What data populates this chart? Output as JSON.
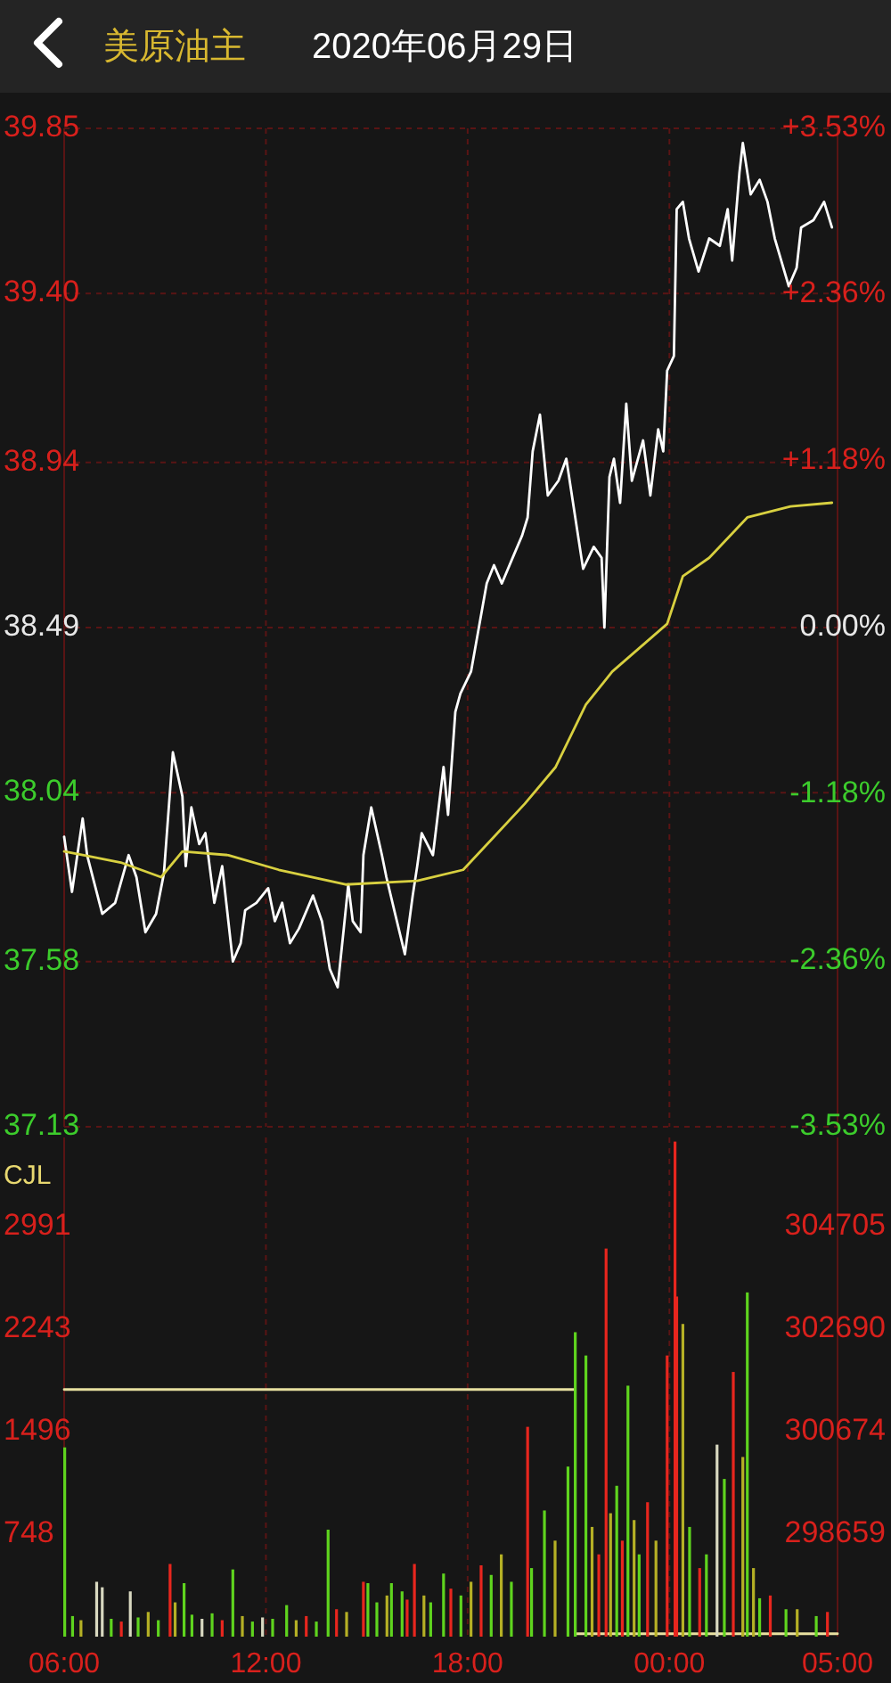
{
  "chart_data": [
    {
      "type": "line",
      "title": "美原油主",
      "subtitle": "2020年06月29日",
      "xlim": [
        "2020-06-29T06:00",
        "2020-06-30T05:00"
      ],
      "xticks": [
        {
          "value": "2020-06-29T12:00",
          "label": null
        },
        {
          "value": "2020-06-29T18:00",
          "label": null
        },
        {
          "value": "2020-06-30T00:00",
          "label": null
        }
      ],
      "ylim": [
        37.13,
        39.85
      ],
      "yticks": [
        37.13,
        37.58,
        38.04,
        38.49,
        38.94,
        {
          "value": 39.4,
          "label": "39.40"
        },
        39.85
      ],
      "y2lim": [
        -3.53,
        3.53
      ],
      "y2ticks": [
        {
          "value": -3.53,
          "label": "-3.53%"
        },
        {
          "value": -2.36,
          "label": "-2.36%"
        },
        {
          "value": -1.18,
          "label": "-1.18%"
        },
        {
          "value": 0,
          "label": "0.00%"
        },
        {
          "value": 1.18,
          "label": "+1.18%"
        },
        {
          "value": 2.36,
          "label": "+2.36%"
        },
        {
          "value": 3.53,
          "label": "+3.53%"
        }
      ],
      "grid": true,
      "tick_labels": "y",
      "series": [
        {
          "color": "#ffffff",
          "x": [
            "2020-06-29T06:00",
            "2020-06-29T06:14",
            "2020-06-29T06:33",
            "2020-06-29T06:41",
            "2020-06-29T07:08",
            "2020-06-29T07:31",
            "2020-06-29T07:55",
            "2020-06-29T08:09",
            "2020-06-29T08:25",
            "2020-06-29T08:44",
            "2020-06-29T08:58",
            "2020-06-29T09:14",
            "2020-06-29T09:31",
            "2020-06-29T09:37",
            "2020-06-29T09:47",
            "2020-06-29T10:01",
            "2020-06-29T10:12",
            "2020-06-29T10:28",
            "2020-06-29T10:42",
            "2020-06-29T11:01",
            "2020-06-29T11:15",
            "2020-06-29T11:23",
            "2020-06-29T11:43",
            "2020-06-29T12:04",
            "2020-06-29T12:16",
            "2020-06-29T12:29",
            "2020-06-29T12:43",
            "2020-06-29T12:59",
            "2020-06-29T13:24",
            "2020-06-29T13:40",
            "2020-06-29T13:54",
            "2020-06-29T14:08",
            "2020-06-29T14:19",
            "2020-06-29T14:27",
            "2020-06-29T14:35",
            "2020-06-29T14:49",
            "2020-06-29T14:54",
            "2020-06-29T15:08",
            "2020-06-29T15:27",
            "2020-06-29T15:35",
            "2020-06-29T15:49",
            "2020-06-29T16:08",
            "2020-06-29T16:22",
            "2020-06-29T16:30",
            "2020-06-29T16:38",
            "2020-06-29T16:58",
            "2020-06-29T17:17",
            "2020-06-29T17:25",
            "2020-06-29T17:38",
            "2020-06-29T17:47",
            "2020-06-29T18:06",
            "2020-06-29T18:20",
            "2020-06-29T18:34",
            "2020-06-29T18:47",
            "2020-06-29T19:01",
            "2020-06-29T19:23",
            "2020-06-29T19:37",
            "2020-06-29T19:47",
            "2020-06-29T19:56",
            "2020-06-29T20:09",
            "2020-06-29T20:23",
            "2020-06-29T20:42",
            "2020-06-29T20:56",
            "2020-06-29T21:10",
            "2020-06-29T21:26",
            "2020-06-29T21:45",
            "2020-06-29T21:59",
            "2020-06-29T22:04",
            "2020-06-29T22:13",
            "2020-06-29T22:21",
            "2020-06-29T22:32",
            "2020-06-29T22:43",
            "2020-06-29T22:53",
            "2020-06-29T23:13",
            "2020-06-29T23:26",
            "2020-06-29T23:40",
            "2020-06-29T23:49",
            "2020-06-29T23:56",
            "2020-06-30T00:08",
            "2020-06-30T00:13",
            "2020-06-30T00:24",
            "2020-06-30T00:35",
            "2020-06-30T00:52",
            "2020-06-30T01:11",
            "2020-06-30T01:30",
            "2020-06-30T01:44",
            "2020-06-30T01:52",
            "2020-06-30T02:05",
            "2020-06-30T02:11",
            "2020-06-30T02:25",
            "2020-06-30T02:41",
            "2020-06-30T02:55",
            "2020-06-30T03:08",
            "2020-06-30T03:33",
            "2020-06-30T03:47",
            "2020-06-30T03:55",
            "2020-06-30T04:17",
            "2020-06-30T04:36",
            "2020-06-30T04:50"
          ],
          "values": [
            37.92,
            37.77,
            37.97,
            37.87,
            37.71,
            37.74,
            37.87,
            37.81,
            37.66,
            37.71,
            37.82,
            38.15,
            38.03,
            37.84,
            38.0,
            37.9,
            37.93,
            37.74,
            37.84,
            37.58,
            37.63,
            37.72,
            37.74,
            37.78,
            37.69,
            37.74,
            37.63,
            37.67,
            37.76,
            37.69,
            37.56,
            37.51,
            37.67,
            37.79,
            37.69,
            37.66,
            37.87,
            38.0,
            37.87,
            37.81,
            37.72,
            37.6,
            37.76,
            37.84,
            37.93,
            37.87,
            38.11,
            37.98,
            38.26,
            38.31,
            38.37,
            38.49,
            38.61,
            38.66,
            38.61,
            38.69,
            38.74,
            38.79,
            38.97,
            39.07,
            38.85,
            38.89,
            38.95,
            38.81,
            38.65,
            38.71,
            38.68,
            38.49,
            38.9,
            38.95,
            38.83,
            39.1,
            38.89,
            39.0,
            38.85,
            39.03,
            38.97,
            39.19,
            39.23,
            39.63,
            39.65,
            39.55,
            39.46,
            39.55,
            39.53,
            39.63,
            39.49,
            39.73,
            39.81,
            39.67,
            39.71,
            39.65,
            39.55,
            39.42,
            39.47,
            39.58,
            39.6,
            39.65,
            39.58
          ]
        },
        {
          "color": "#d8d040",
          "x": [
            "2020-06-29T06:00",
            "2020-06-29T06:35",
            "2020-06-29T07:41",
            "2020-06-29T08:53",
            "2020-06-29T09:31",
            "2020-06-29T10:53",
            "2020-06-29T12:23",
            "2020-06-29T14:22",
            "2020-06-29T16:30",
            "2020-06-29T17:52",
            "2020-06-29T18:47",
            "2020-06-29T19:42",
            "2020-06-29T20:37",
            "2020-06-29T21:31",
            "2020-06-29T22:18",
            "2020-06-29T23:56",
            "2020-06-30T00:24",
            "2020-06-30T01:11",
            "2020-06-30T02:19",
            "2020-06-30T03:36",
            "2020-06-30T04:50"
          ],
          "values": [
            37.88,
            37.87,
            37.85,
            37.81,
            37.88,
            37.87,
            37.83,
            37.79,
            37.8,
            37.83,
            37.92,
            38.01,
            38.11,
            38.28,
            38.37,
            38.5,
            38.63,
            38.68,
            38.79,
            38.82,
            38.83
          ]
        }
      ]
    },
    {
      "type": "bar",
      "title": "CJL",
      "xlim": [
        "2020-06-29T06:00",
        "2020-06-30T05:00"
      ],
      "xticks": [
        {
          "value": "2020-06-29T06:00",
          "label": "06:00"
        },
        {
          "value": "2020-06-29T12:00",
          "label": "12:00"
        },
        {
          "value": "2020-06-29T18:00",
          "label": "18:00"
        },
        {
          "value": "2020-06-30T00:00",
          "label": "00:00"
        },
        {
          "value": "2020-06-30T05:00",
          "label": "05:00"
        }
      ],
      "ylim": [
        0,
        3640
      ],
      "yticks": [
        748,
        1496,
        2243,
        2991
      ],
      "y2lim": [
        296643,
        306454
      ],
      "y2ticks": [
        298659,
        300674,
        302690,
        304705
      ],
      "grid": "x",
      "series": [
        {
          "type": "bar",
          "x": [
            "2020-06-29T06:01",
            "2020-06-29T06:15",
            "2020-06-29T06:30",
            "2020-06-29T06:58",
            "2020-06-29T07:08",
            "2020-06-29T07:24",
            "2020-06-29T07:42",
            "2020-06-29T07:58",
            "2020-06-29T08:12",
            "2020-06-29T08:30",
            "2020-06-29T08:48",
            "2020-06-29T09:09",
            "2020-06-29T09:18",
            "2020-06-29T09:34",
            "2020-06-29T09:48",
            "2020-06-29T10:06",
            "2020-06-29T10:24",
            "2020-06-29T10:42",
            "2020-06-29T11:01",
            "2020-06-29T11:18",
            "2020-06-29T11:36",
            "2020-06-29T11:54",
            "2020-06-29T12:12",
            "2020-06-29T12:37",
            "2020-06-29T12:54",
            "2020-06-29T13:12",
            "2020-06-29T13:30",
            "2020-06-29T13:51",
            "2020-06-29T14:06",
            "2020-06-29T14:24",
            "2020-06-29T14:54",
            "2020-06-29T15:02",
            "2020-06-29T15:18",
            "2020-06-29T15:36",
            "2020-06-29T15:44",
            "2020-06-29T16:03",
            "2020-06-29T16:12",
            "2020-06-29T16:25",
            "2020-06-29T16:42",
            "2020-06-29T16:54",
            "2020-06-29T17:17",
            "2020-06-29T17:30",
            "2020-06-29T17:48",
            "2020-06-29T18:06",
            "2020-06-29T18:24",
            "2020-06-29T18:42",
            "2020-06-29T19:00",
            "2020-06-29T19:18",
            "2020-06-29T19:47",
            "2020-06-29T19:54",
            "2020-06-29T20:17",
            "2020-06-29T20:36",
            "2020-06-29T20:59",
            "2020-06-29T21:12",
            "2020-06-29T21:31",
            "2020-06-29T21:42",
            "2020-06-29T21:54",
            "2020-06-29T22:07",
            "2020-06-29T22:15",
            "2020-06-29T22:26",
            "2020-06-29T22:36",
            "2020-06-29T22:46",
            "2020-06-29T22:57",
            "2020-06-29T23:06",
            "2020-06-29T23:21",
            "2020-06-29T23:36",
            "2020-06-29T23:56",
            "2020-06-30T00:10",
            "2020-06-30T00:13",
            "2020-06-30T00:24",
            "2020-06-30T00:36",
            "2020-06-30T00:54",
            "2020-06-30T01:06",
            "2020-06-30T01:25",
            "2020-06-30T01:38",
            "2020-06-30T01:54",
            "2020-06-30T02:11",
            "2020-06-30T02:19",
            "2020-06-30T02:30",
            "2020-06-30T02:41",
            "2020-06-30T03:00",
            "2020-06-30T03:28",
            "2020-06-30T03:48",
            "2020-06-30T04:22",
            "2020-06-30T04:42"
          ],
          "values": [
            1380,
            150,
            120,
            400,
            360,
            130,
            110,
            330,
            140,
            180,
            120,
            530,
            250,
            390,
            160,
            130,
            170,
            120,
            490,
            150,
            110,
            140,
            130,
            230,
            120,
            150,
            110,
            780,
            200,
            180,
            400,
            390,
            250,
            300,
            390,
            330,
            270,
            530,
            300,
            250,
            460,
            350,
            300,
            400,
            520,
            450,
            600,
            400,
            1530,
            500,
            920,
            700,
            1240,
            2220,
            2050,
            800,
            600,
            2830,
            900,
            1100,
            700,
            1830,
            850,
            600,
            980,
            700,
            2050,
            3610,
            2480,
            2280,
            800,
            500,
            600,
            1400,
            1150,
            1930,
            1310,
            2510,
            500,
            280,
            300,
            200,
            200,
            150,
            180
          ],
          "colors": [
            "#5fd41e",
            "#5fd41e",
            "#b5b025",
            "#d8d8c0",
            "#d8d8c0",
            "#5fd41e",
            "#e8261e",
            "#d8d8c0",
            "#5fd41e",
            "#b5b025",
            "#5fd41e",
            "#e8261e",
            "#b5b025",
            "#5fd41e",
            "#5fd41e",
            "#d8d8c0",
            "#5fd41e",
            "#e8261e",
            "#5fd41e",
            "#b5b025",
            "#5fd41e",
            "#d8d8c0",
            "#5fd41e",
            "#5fd41e",
            "#b5b025",
            "#e8261e",
            "#5fd41e",
            "#5fd41e",
            "#e8261e",
            "#b5b025",
            "#e8261e",
            "#5fd41e",
            "#5fd41e",
            "#b5b025",
            "#5fd41e",
            "#5fd41e",
            "#e8261e",
            "#e8261e",
            "#b5b025",
            "#5fd41e",
            "#5fd41e",
            "#e8261e",
            "#5fd41e",
            "#b5b025",
            "#e8261e",
            "#5fd41e",
            "#b5b025",
            "#5fd41e",
            "#e8261e",
            "#5fd41e",
            "#5fd41e",
            "#b5b025",
            "#5fd41e",
            "#5fd41e",
            "#5fd41e",
            "#b5b025",
            "#e8261e",
            "#e8261e",
            "#b5b025",
            "#5fd41e",
            "#e8261e",
            "#5fd41e",
            "#b5b025",
            "#5fd41e",
            "#e8261e",
            "#b5b025",
            "#e8261e",
            "#e8261e",
            "#e8261e",
            "#b5b025",
            "#5fd41e",
            "#e8261e",
            "#5fd41e",
            "#d8d8c0",
            "#5fd41e",
            "#e8261e",
            "#b5b025",
            "#5fd41e",
            "#b5b025",
            "#5fd41e",
            "#e8261e",
            "#5fd41e",
            "#b5b025",
            "#5fd41e",
            "#e8261e"
          ]
        },
        {
          "type": "line",
          "axis": "y2",
          "color": "#e8e0a0",
          "x": [
            "2020-06-29T06:00",
            "2020-06-29T21:12",
            "2020-06-29T21:12",
            "2020-06-30T05:00"
          ],
          "values": [
            301500,
            301500,
            296700,
            296700
          ]
        }
      ]
    }
  ]
}
